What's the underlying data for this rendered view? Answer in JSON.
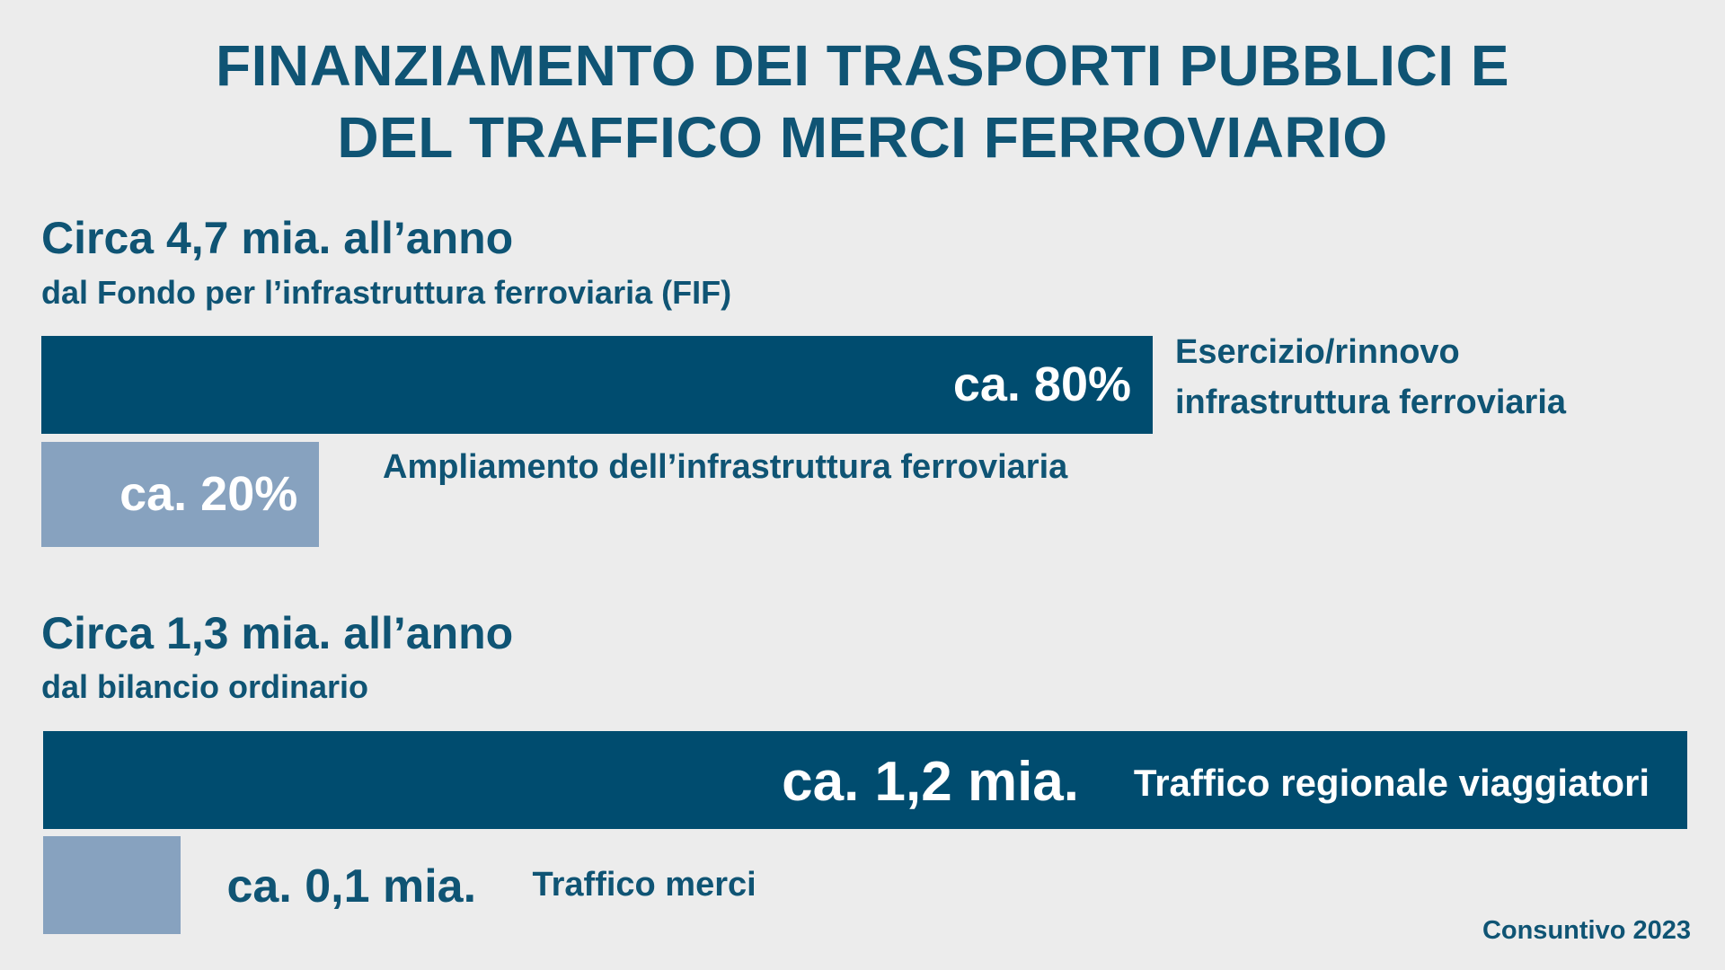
{
  "title": {
    "line1": "FINANZIAMENTO DEI TRASPORTI PUBBLICI E",
    "line2": "DEL TRAFFICO MERCI FERROVIARIO"
  },
  "footnote": "Consuntivo 2023",
  "colors": {
    "background": "#ececec",
    "text": "#0f5474",
    "bar_dark": "#004c6f",
    "bar_light": "#87a2bf"
  },
  "chart_data": [
    {
      "type": "bar",
      "orientation": "horizontal",
      "title": "Circa 4,7 mia. all’anno",
      "subtitle": "dal Fondo per l’infrastruttura ferroviaria (FIF)",
      "unit": "%",
      "bars": [
        {
          "value": 80,
          "value_label": "ca. 80%",
          "label_lines": [
            "Esercizio/rinnovo",
            "infrastruttura ferroviaria"
          ],
          "color": "#004c6f"
        },
        {
          "value": 20,
          "value_label": "ca. 20%",
          "label_lines": [
            "Ampliamento dell’infrastruttura ferroviaria"
          ],
          "color": "#87a2bf"
        }
      ]
    },
    {
      "type": "bar",
      "orientation": "horizontal",
      "title": "Circa 1,3 mia. all’anno",
      "subtitle": "dal bilancio ordinario",
      "unit": "mia.",
      "bars": [
        {
          "value": 1.2,
          "value_label": "ca. 1,2 mia.",
          "label_lines": [
            "Traffico regionale viaggiatori"
          ],
          "color": "#004c6f"
        },
        {
          "value": 0.1,
          "value_label": "ca. 0,1 mia.",
          "label_lines": [
            "Traffico merci"
          ],
          "color": "#87a2bf"
        }
      ]
    }
  ]
}
